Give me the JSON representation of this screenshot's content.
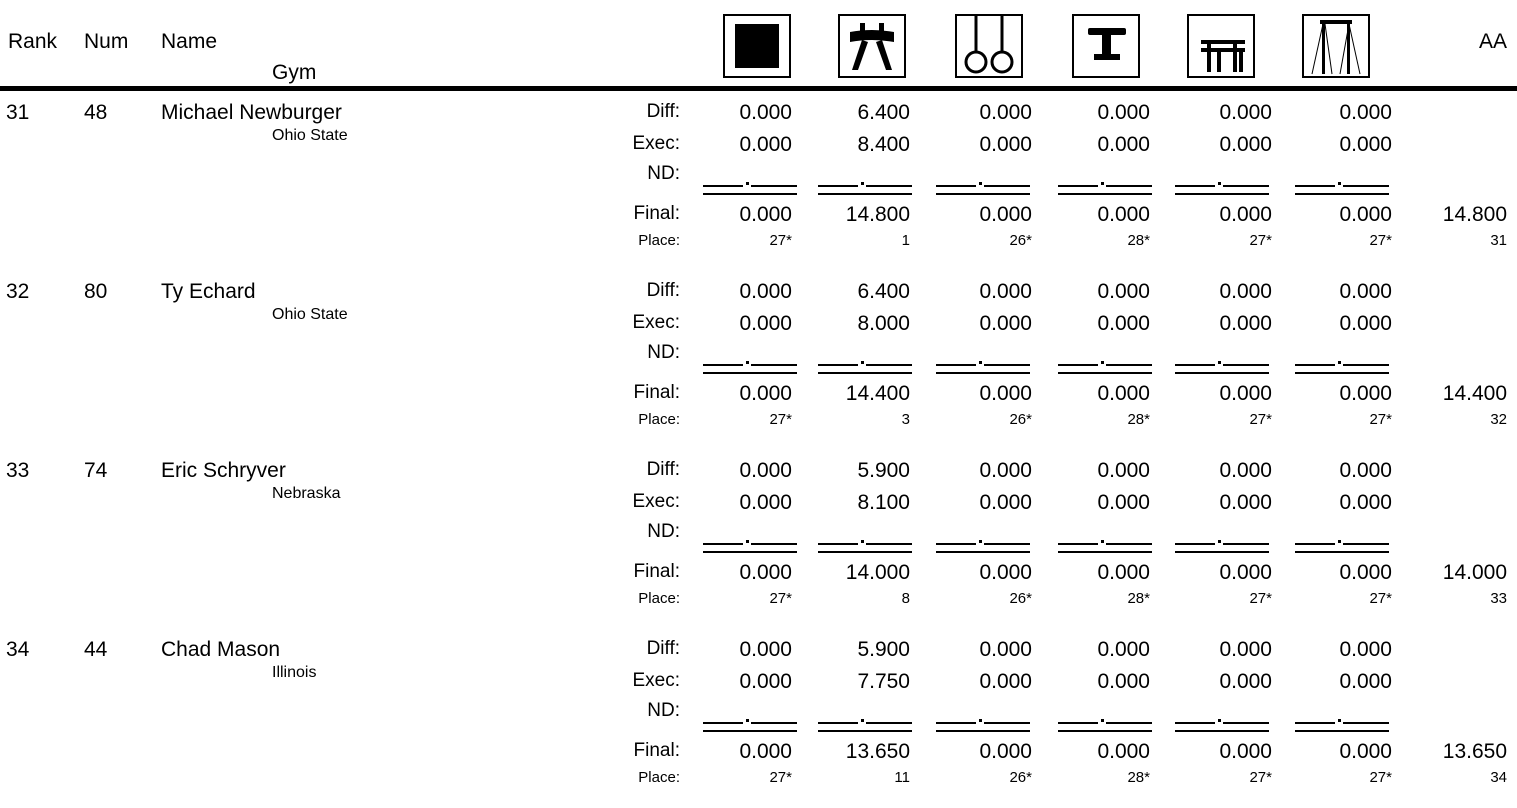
{
  "header": {
    "rank": "Rank",
    "num": "Num",
    "name": "Name",
    "gym": "Gym",
    "aa": "AA"
  },
  "events": [
    {
      "icon": "floor-exercise-icon"
    },
    {
      "icon": "pommel-horse-icon"
    },
    {
      "icon": "still-rings-icon"
    },
    {
      "icon": "vault-icon"
    },
    {
      "icon": "parallel-bars-icon"
    },
    {
      "icon": "high-bar-icon"
    }
  ],
  "labels": {
    "diff": "Diff:",
    "exec": "Exec:",
    "nd": "ND:",
    "final": "Final:",
    "place": "Place:"
  },
  "athletes": [
    {
      "rank": "31",
      "num": "48",
      "name": "Michael Newburger",
      "gym": "Ohio State",
      "diff": [
        "0.000",
        "6.400",
        "0.000",
        "0.000",
        "0.000",
        "0.000"
      ],
      "exec": [
        "0.000",
        "8.400",
        "0.000",
        "0.000",
        "0.000",
        "0.000"
      ],
      "final": [
        "0.000",
        "14.800",
        "0.000",
        "0.000",
        "0.000",
        "0.000"
      ],
      "place": [
        "27*",
        "1",
        "26*",
        "28*",
        "27*",
        "27*"
      ],
      "aa": "14.800",
      "aa_place": "31"
    },
    {
      "rank": "32",
      "num": "80",
      "name": "Ty Echard",
      "gym": "Ohio State",
      "diff": [
        "0.000",
        "6.400",
        "0.000",
        "0.000",
        "0.000",
        "0.000"
      ],
      "exec": [
        "0.000",
        "8.000",
        "0.000",
        "0.000",
        "0.000",
        "0.000"
      ],
      "final": [
        "0.000",
        "14.400",
        "0.000",
        "0.000",
        "0.000",
        "0.000"
      ],
      "place": [
        "27*",
        "3",
        "26*",
        "28*",
        "27*",
        "27*"
      ],
      "aa": "14.400",
      "aa_place": "32"
    },
    {
      "rank": "33",
      "num": "74",
      "name": "Eric Schryver",
      "gym": "Nebraska",
      "diff": [
        "0.000",
        "5.900",
        "0.000",
        "0.000",
        "0.000",
        "0.000"
      ],
      "exec": [
        "0.000",
        "8.100",
        "0.000",
        "0.000",
        "0.000",
        "0.000"
      ],
      "final": [
        "0.000",
        "14.000",
        "0.000",
        "0.000",
        "0.000",
        "0.000"
      ],
      "place": [
        "27*",
        "8",
        "26*",
        "28*",
        "27*",
        "27*"
      ],
      "aa": "14.000",
      "aa_place": "33"
    },
    {
      "rank": "34",
      "num": "44",
      "name": "Chad Mason",
      "gym": "Illinois",
      "diff": [
        "0.000",
        "5.900",
        "0.000",
        "0.000",
        "0.000",
        "0.000"
      ],
      "exec": [
        "0.000",
        "7.750",
        "0.000",
        "0.000",
        "0.000",
        "0.000"
      ],
      "final": [
        "0.000",
        "13.650",
        "0.000",
        "0.000",
        "0.000",
        "0.000"
      ],
      "place": [
        "27*",
        "11",
        "26*",
        "28*",
        "27*",
        "27*"
      ],
      "aa": "13.650",
      "aa_place": "34"
    }
  ]
}
